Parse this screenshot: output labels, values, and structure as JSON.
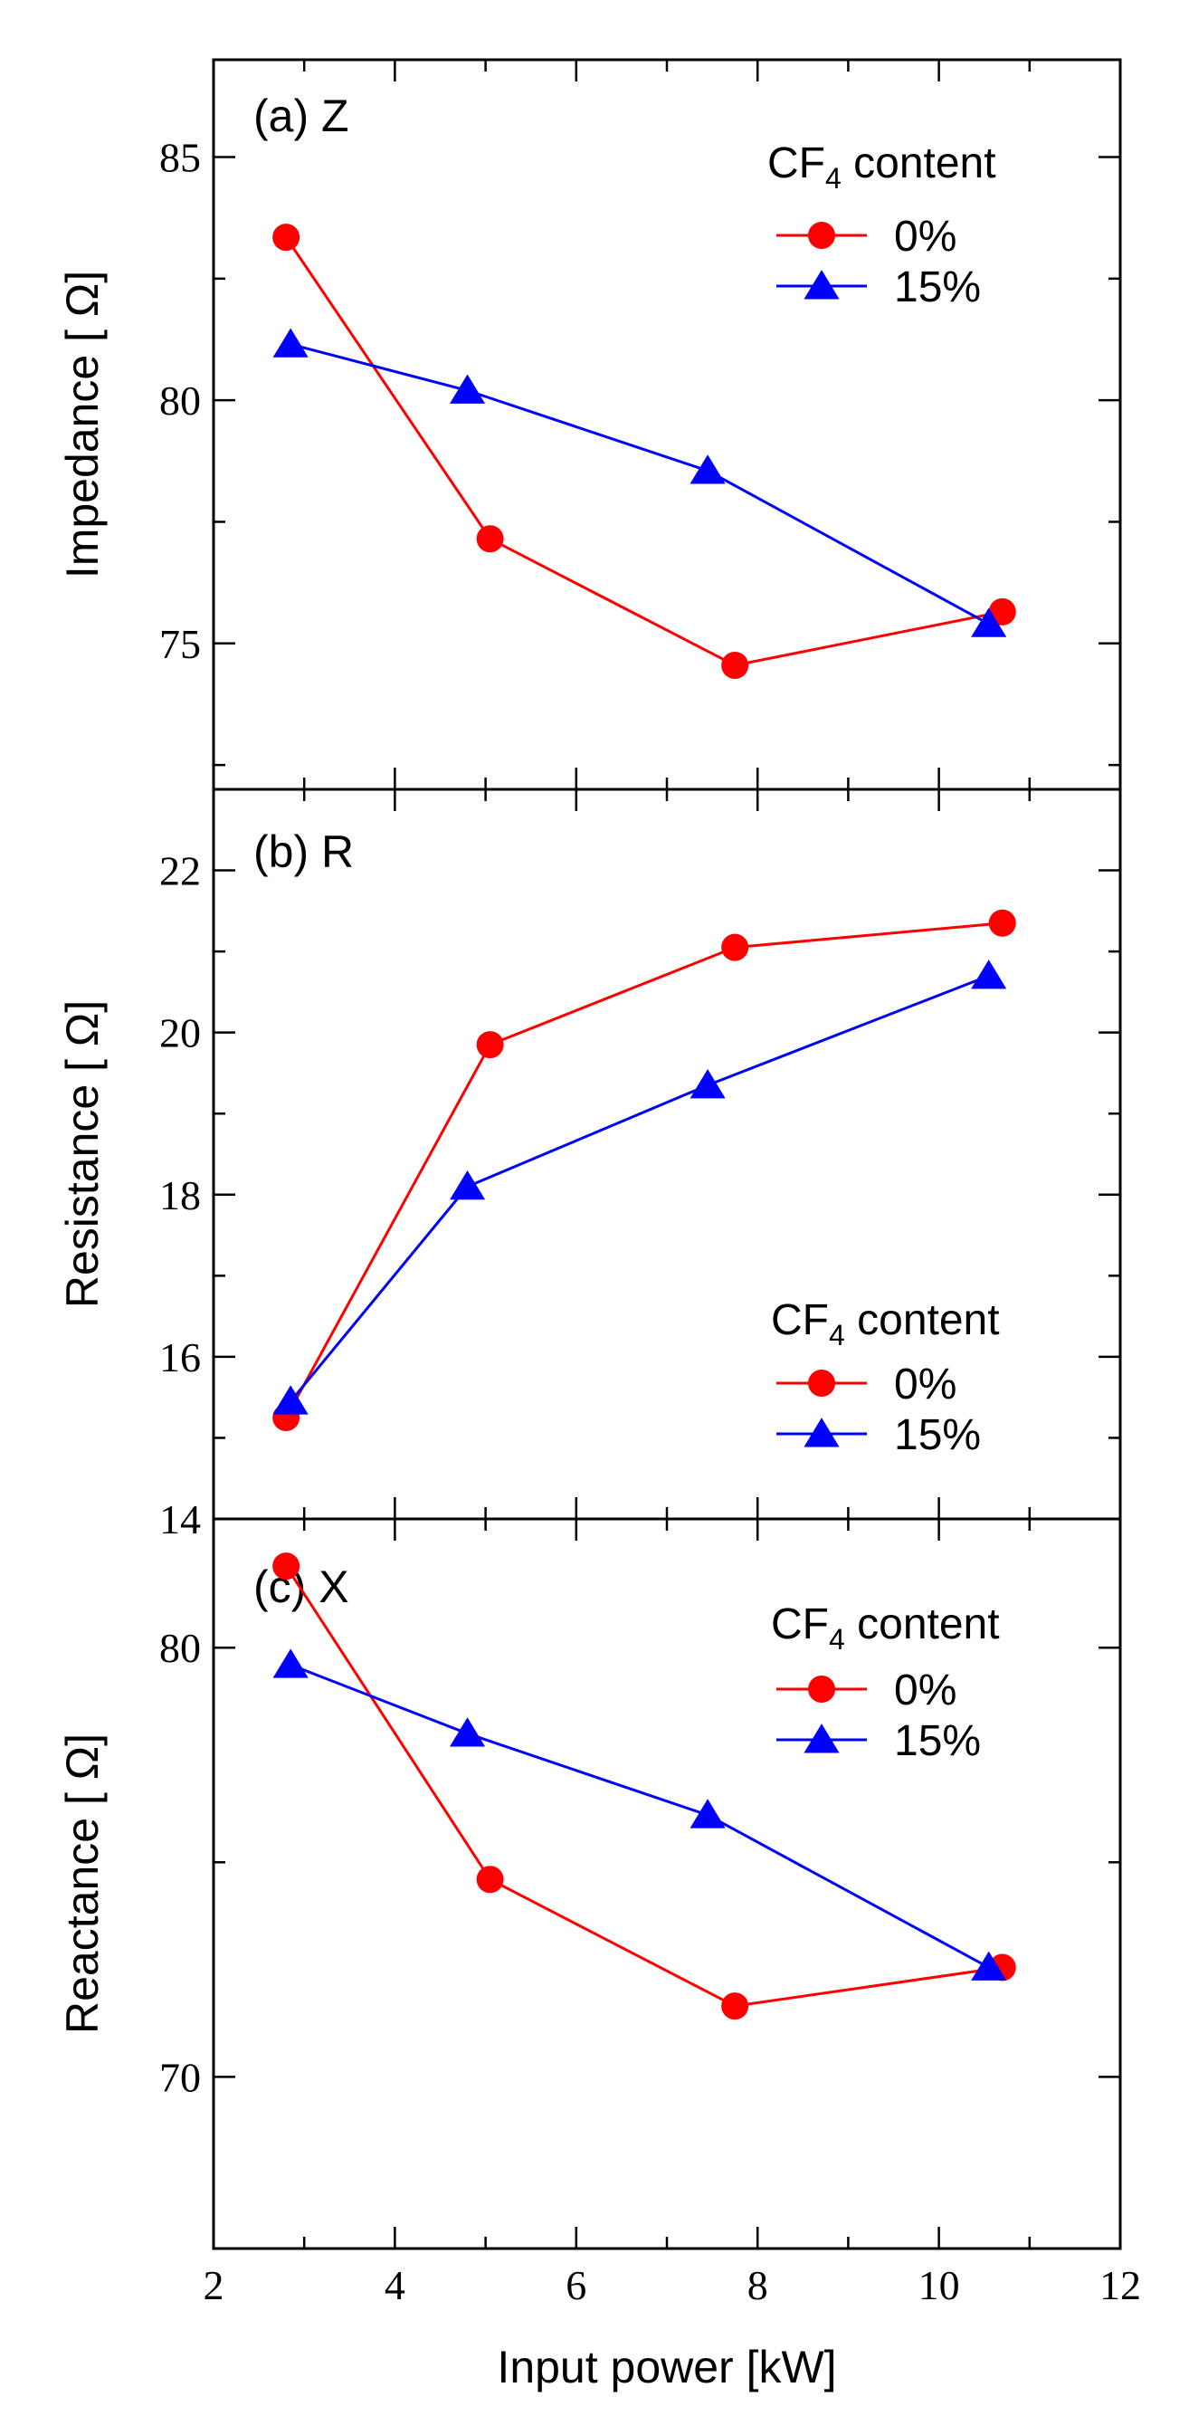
{
  "chart_data": [
    {
      "type": "line",
      "panel_label": "(a) Z",
      "ylabel": "Impedance [ Ω]",
      "xlim": [
        2,
        12
      ],
      "ylim": [
        72,
        87
      ],
      "yticks": [
        75,
        80,
        85
      ],
      "legend": {
        "title_main": "CF",
        "title_sub": "4",
        "title_rest": " content",
        "position": "top-right"
      },
      "series": [
        {
          "name": "0%",
          "color": "#ff0000",
          "marker": "circle",
          "x": [
            2.8,
            5.05,
            7.75,
            10.7
          ],
          "y": [
            83.35,
            77.15,
            74.55,
            75.65
          ]
        },
        {
          "name": "15%",
          "color": "#0000ff",
          "marker": "triangle",
          "x": [
            2.85,
            4.8,
            7.45,
            10.55
          ],
          "y": [
            81.15,
            80.2,
            78.55,
            75.4
          ]
        }
      ]
    },
    {
      "type": "line",
      "panel_label": "(b) R",
      "ylabel": "Resistance [ Ω]",
      "xlim": [
        2,
        12
      ],
      "ylim": [
        14,
        23
      ],
      "yticks": [
        14,
        16,
        18,
        20,
        22
      ],
      "legend": {
        "title_main": "CF",
        "title_sub": "4",
        "title_rest": " content",
        "position": "bottom-right"
      },
      "series": [
        {
          "name": "0%",
          "color": "#ff0000",
          "marker": "circle",
          "x": [
            2.8,
            5.05,
            7.75,
            10.7
          ],
          "y": [
            15.25,
            19.85,
            21.05,
            21.35
          ]
        },
        {
          "name": "15%",
          "color": "#0000ff",
          "marker": "triangle",
          "x": [
            2.85,
            4.8,
            7.45,
            10.55
          ],
          "y": [
            15.45,
            18.1,
            19.35,
            20.7
          ]
        }
      ]
    },
    {
      "type": "line",
      "panel_label": "(c) X",
      "ylabel": "Reactance [ Ω]",
      "xlim": [
        2,
        12
      ],
      "ylim": [
        66,
        83
      ],
      "yticks": [
        70,
        80
      ],
      "legend": {
        "title_main": "CF",
        "title_sub": "4",
        "title_rest": " content",
        "position": "top-right"
      },
      "series": [
        {
          "name": "0%",
          "color": "#ff0000",
          "marker": "circle",
          "x": [
            2.8,
            5.05,
            7.75,
            10.7
          ],
          "y": [
            81.9,
            74.6,
            71.65,
            72.55
          ]
        },
        {
          "name": "15%",
          "color": "#0000ff",
          "marker": "triangle",
          "x": [
            2.85,
            4.8,
            7.45,
            10.55
          ],
          "y": [
            79.6,
            78.0,
            76.1,
            72.55
          ]
        }
      ]
    }
  ],
  "xaxis": {
    "label": "Input power [kW]",
    "ticks": [
      2,
      4,
      6,
      8,
      10,
      12
    ]
  }
}
